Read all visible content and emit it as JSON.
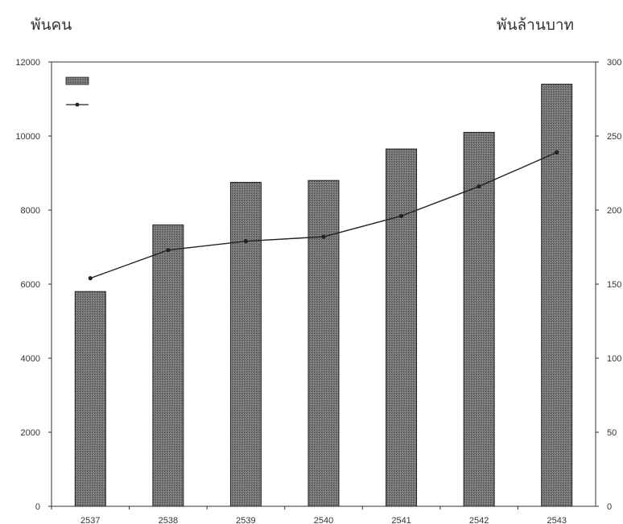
{
  "units": {
    "left": "พันคน",
    "right": "พันล้านบาท"
  },
  "colors": {
    "bar_fill": "#6e6e6e",
    "bar_stroke": "#222222",
    "line": "#222222",
    "axis": "#333333"
  },
  "chart_data": {
    "type": "bar",
    "categories": [
      "2537",
      "2538",
      "2539",
      "2540",
      "2541",
      "2542",
      "2543"
    ],
    "series": [
      {
        "type": "bar",
        "axis": "left",
        "values": [
          5800,
          7600,
          8750,
          8800,
          9650,
          10100,
          11400
        ]
      },
      {
        "type": "line",
        "axis": "right",
        "values": [
          154,
          173,
          179,
          182,
          196,
          216,
          239
        ]
      }
    ],
    "y_left": {
      "ylim": [
        0,
        12000
      ],
      "ticks": [
        0,
        2000,
        4000,
        6000,
        8000,
        10000,
        12000
      ]
    },
    "y_right": {
      "ylim": [
        0,
        300
      ],
      "ticks": [
        0,
        50,
        100,
        150,
        200,
        250,
        300
      ]
    },
    "grid": false,
    "legend": {
      "placement": "top-left"
    }
  }
}
